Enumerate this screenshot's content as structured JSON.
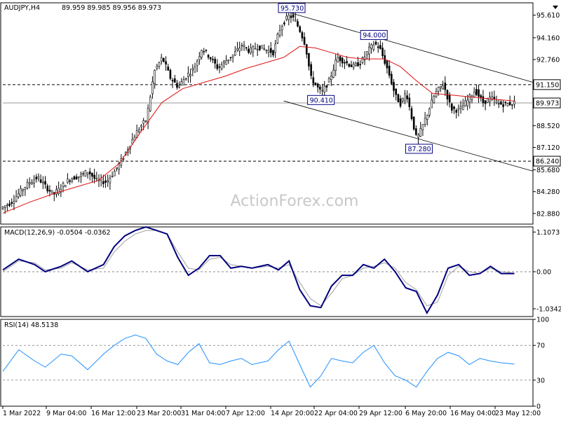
{
  "header": {
    "symbol": "AUDJPY,H4",
    "ohlc": "89.959 89.985 89.956 89.973"
  },
  "watermark": "ActionForex.com",
  "colors": {
    "price": "#000000",
    "ma": "#e01010",
    "channel": "#000000",
    "macd_main": "#00007f",
    "macd_signal": "#a0a0a0",
    "rsi": "#1e90ff",
    "level_line": "#000000",
    "price_tag_bg": "#ffffff",
    "box_border": "#000080"
  },
  "chart_data": [
    {
      "type": "candlestick",
      "panel": "price",
      "ylim": [
        82.2,
        96.4
      ],
      "y_ticks": [
        "95.610",
        "94.160",
        "92.760",
        "91.150",
        "89.973",
        "88.520",
        "87.120",
        "86.240",
        "85.680",
        "84.280",
        "82.880"
      ],
      "y_tick_values": [
        95.61,
        94.16,
        92.76,
        91.15,
        89.973,
        88.52,
        87.12,
        86.24,
        85.68,
        84.28,
        82.88
      ],
      "highlighted_levels": [
        {
          "label": "91.150",
          "value": 91.15,
          "style": "dashed"
        },
        {
          "label": "89.973",
          "value": 89.973,
          "style": "current"
        },
        {
          "label": "86.240",
          "value": 86.24,
          "style": "dashed"
        }
      ],
      "annotations": [
        {
          "label": "95.730",
          "x": 0.545,
          "value": 95.73
        },
        {
          "label": "94.000",
          "x": 0.7,
          "value": 94.0
        },
        {
          "label": "90.410",
          "x": 0.6,
          "value": 90.41
        },
        {
          "label": "87.280",
          "x": 0.785,
          "value": 87.28
        }
      ],
      "channel_upper": [
        [
          0.545,
          95.73
        ],
        [
          1.0,
          91.3
        ]
      ],
      "channel_lower": [
        [
          0.53,
          90.1
        ],
        [
          1.0,
          85.6
        ]
      ],
      "price_series": [
        [
          0.0,
          83.2
        ],
        [
          0.02,
          83.6
        ],
        [
          0.04,
          84.4
        ],
        [
          0.055,
          84.9
        ],
        [
          0.07,
          85.2
        ],
        [
          0.085,
          84.6
        ],
        [
          0.1,
          84.1
        ],
        [
          0.115,
          84.6
        ],
        [
          0.13,
          85.1
        ],
        [
          0.15,
          85.3
        ],
        [
          0.165,
          85.6
        ],
        [
          0.18,
          85.0
        ],
        [
          0.2,
          84.9
        ],
        [
          0.215,
          85.6
        ],
        [
          0.23,
          86.4
        ],
        [
          0.245,
          87.4
        ],
        [
          0.26,
          88.3
        ],
        [
          0.275,
          88.9
        ],
        [
          0.29,
          92.0
        ],
        [
          0.305,
          92.9
        ],
        [
          0.32,
          91.6
        ],
        [
          0.335,
          91.0
        ],
        [
          0.35,
          91.7
        ],
        [
          0.365,
          92.2
        ],
        [
          0.38,
          93.5
        ],
        [
          0.395,
          92.9
        ],
        [
          0.41,
          92.2
        ],
        [
          0.425,
          92.7
        ],
        [
          0.44,
          93.1
        ],
        [
          0.455,
          93.7
        ],
        [
          0.47,
          93.3
        ],
        [
          0.485,
          93.6
        ],
        [
          0.5,
          93.4
        ],
        [
          0.515,
          93.2
        ],
        [
          0.525,
          94.6
        ],
        [
          0.535,
          95.2
        ],
        [
          0.545,
          95.6
        ],
        [
          0.555,
          95.3
        ],
        [
          0.565,
          94.6
        ],
        [
          0.575,
          93.7
        ],
        [
          0.585,
          91.6
        ],
        [
          0.595,
          91.1
        ],
        [
          0.605,
          90.6
        ],
        [
          0.62,
          91.4
        ],
        [
          0.635,
          92.9
        ],
        [
          0.65,
          92.6
        ],
        [
          0.665,
          92.3
        ],
        [
          0.68,
          92.6
        ],
        [
          0.695,
          93.4
        ],
        [
          0.705,
          93.8
        ],
        [
          0.715,
          93.5
        ],
        [
          0.725,
          92.6
        ],
        [
          0.735,
          91.6
        ],
        [
          0.745,
          90.4
        ],
        [
          0.755,
          89.9
        ],
        [
          0.765,
          90.7
        ],
        [
          0.775,
          89.1
        ],
        [
          0.785,
          87.6
        ],
        [
          0.795,
          88.4
        ],
        [
          0.805,
          89.3
        ],
        [
          0.82,
          90.6
        ],
        [
          0.835,
          91.2
        ],
        [
          0.85,
          89.6
        ],
        [
          0.865,
          89.5
        ],
        [
          0.88,
          90.1
        ],
        [
          0.895,
          90.8
        ],
        [
          0.91,
          90.0
        ],
        [
          0.925,
          90.3
        ],
        [
          0.94,
          89.9
        ],
        [
          0.955,
          89.9
        ],
        [
          0.965,
          89.97
        ]
      ],
      "ma_series": [
        [
          0.0,
          82.9
        ],
        [
          0.05,
          83.6
        ],
        [
          0.1,
          84.2
        ],
        [
          0.15,
          84.7
        ],
        [
          0.18,
          85.0
        ],
        [
          0.22,
          86.1
        ],
        [
          0.26,
          88.1
        ],
        [
          0.3,
          90.0
        ],
        [
          0.34,
          90.9
        ],
        [
          0.38,
          91.3
        ],
        [
          0.42,
          91.7
        ],
        [
          0.46,
          92.2
        ],
        [
          0.5,
          92.6
        ],
        [
          0.53,
          92.9
        ],
        [
          0.56,
          93.6
        ],
        [
          0.59,
          93.5
        ],
        [
          0.62,
          93.2
        ],
        [
          0.65,
          92.9
        ],
        [
          0.68,
          92.8
        ],
        [
          0.72,
          92.8
        ],
        [
          0.75,
          92.3
        ],
        [
          0.78,
          91.4
        ],
        [
          0.81,
          90.6
        ],
        [
          0.84,
          90.5
        ],
        [
          0.87,
          90.4
        ],
        [
          0.9,
          90.3
        ],
        [
          0.93,
          90.2
        ],
        [
          0.965,
          90.1
        ]
      ]
    },
    {
      "type": "line",
      "panel": "macd",
      "title": "MACD(12,26,9) -0.0504 -0.0362",
      "ylim": [
        -1.25,
        1.25
      ],
      "y_ticks": [
        "1.1073",
        "0.00",
        "-1.0342"
      ],
      "y_tick_values": [
        1.1073,
        0.0,
        -1.0342
      ],
      "series": [
        {
          "values": [
            [
              0.0,
              0.05
            ],
            [
              0.03,
              0.35
            ],
            [
              0.06,
              0.2
            ],
            [
              0.08,
              0.0
            ],
            [
              0.11,
              0.15
            ],
            [
              0.13,
              0.3
            ],
            [
              0.16,
              0.0
            ],
            [
              0.19,
              0.2
            ],
            [
              0.21,
              0.7
            ],
            [
              0.23,
              1.0
            ],
            [
              0.25,
              1.15
            ],
            [
              0.27,
              1.25
            ],
            [
              0.29,
              1.15
            ],
            [
              0.31,
              1.05
            ],
            [
              0.33,
              0.4
            ],
            [
              0.35,
              -0.1
            ],
            [
              0.37,
              0.1
            ],
            [
              0.39,
              0.45
            ],
            [
              0.41,
              0.45
            ],
            [
              0.43,
              0.1
            ],
            [
              0.45,
              0.15
            ],
            [
              0.47,
              0.1
            ],
            [
              0.5,
              0.2
            ],
            [
              0.52,
              0.05
            ],
            [
              0.54,
              0.3
            ],
            [
              0.56,
              -0.5
            ],
            [
              0.58,
              -0.95
            ],
            [
              0.6,
              -1.0
            ],
            [
              0.62,
              -0.4
            ],
            [
              0.64,
              -0.1
            ],
            [
              0.66,
              -0.1
            ],
            [
              0.68,
              0.2
            ],
            [
              0.7,
              0.1
            ],
            [
              0.72,
              0.35
            ],
            [
              0.74,
              0.0
            ],
            [
              0.76,
              -0.45
            ],
            [
              0.78,
              -0.55
            ],
            [
              0.8,
              -1.15
            ],
            [
              0.82,
              -0.65
            ],
            [
              0.84,
              0.1
            ],
            [
              0.86,
              0.2
            ],
            [
              0.88,
              -0.1
            ],
            [
              0.9,
              -0.05
            ],
            [
              0.92,
              0.15
            ],
            [
              0.94,
              -0.05
            ],
            [
              0.965,
              -0.05
            ]
          ]
        },
        {
          "values": [
            [
              0.0,
              0.0
            ],
            [
              0.03,
              0.3
            ],
            [
              0.06,
              0.25
            ],
            [
              0.08,
              0.05
            ],
            [
              0.11,
              0.1
            ],
            [
              0.13,
              0.25
            ],
            [
              0.16,
              0.05
            ],
            [
              0.19,
              0.1
            ],
            [
              0.21,
              0.55
            ],
            [
              0.23,
              0.85
            ],
            [
              0.25,
              1.05
            ],
            [
              0.27,
              1.15
            ],
            [
              0.29,
              1.15
            ],
            [
              0.31,
              1.05
            ],
            [
              0.33,
              0.55
            ],
            [
              0.35,
              0.1
            ],
            [
              0.37,
              0.05
            ],
            [
              0.39,
              0.35
            ],
            [
              0.41,
              0.4
            ],
            [
              0.43,
              0.2
            ],
            [
              0.45,
              0.15
            ],
            [
              0.47,
              0.1
            ],
            [
              0.5,
              0.15
            ],
            [
              0.52,
              0.1
            ],
            [
              0.54,
              0.2
            ],
            [
              0.56,
              -0.3
            ],
            [
              0.58,
              -0.75
            ],
            [
              0.6,
              -0.95
            ],
            [
              0.62,
              -0.6
            ],
            [
              0.64,
              -0.2
            ],
            [
              0.66,
              -0.1
            ],
            [
              0.68,
              0.1
            ],
            [
              0.7,
              0.15
            ],
            [
              0.72,
              0.25
            ],
            [
              0.74,
              0.1
            ],
            [
              0.76,
              -0.3
            ],
            [
              0.78,
              -0.5
            ],
            [
              0.8,
              -0.95
            ],
            [
              0.82,
              -0.85
            ],
            [
              0.84,
              -0.1
            ],
            [
              0.86,
              0.15
            ],
            [
              0.88,
              0.0
            ],
            [
              0.9,
              -0.05
            ],
            [
              0.92,
              0.1
            ],
            [
              0.94,
              0.0
            ],
            [
              0.965,
              -0.04
            ]
          ]
        }
      ]
    },
    {
      "type": "line",
      "panel": "rsi",
      "title": "RSI(14) 48.5138",
      "ylim": [
        0,
        100
      ],
      "y_ticks": [
        "100",
        "70",
        "30",
        "0"
      ],
      "y_tick_values": [
        100,
        70,
        30,
        0
      ],
      "levels": [
        70,
        30
      ],
      "values": [
        [
          0.0,
          40
        ],
        [
          0.03,
          65
        ],
        [
          0.06,
          52
        ],
        [
          0.08,
          45
        ],
        [
          0.11,
          60
        ],
        [
          0.13,
          58
        ],
        [
          0.16,
          42
        ],
        [
          0.19,
          60
        ],
        [
          0.21,
          70
        ],
        [
          0.23,
          78
        ],
        [
          0.25,
          82
        ],
        [
          0.27,
          78
        ],
        [
          0.29,
          60
        ],
        [
          0.31,
          52
        ],
        [
          0.33,
          48
        ],
        [
          0.35,
          62
        ],
        [
          0.37,
          72
        ],
        [
          0.39,
          50
        ],
        [
          0.41,
          48
        ],
        [
          0.43,
          52
        ],
        [
          0.45,
          55
        ],
        [
          0.47,
          48
        ],
        [
          0.5,
          52
        ],
        [
          0.52,
          65
        ],
        [
          0.54,
          75
        ],
        [
          0.56,
          48
        ],
        [
          0.58,
          22
        ],
        [
          0.6,
          35
        ],
        [
          0.62,
          55
        ],
        [
          0.64,
          52
        ],
        [
          0.66,
          50
        ],
        [
          0.68,
          62
        ],
        [
          0.7,
          70
        ],
        [
          0.72,
          50
        ],
        [
          0.74,
          35
        ],
        [
          0.76,
          30
        ],
        [
          0.78,
          22
        ],
        [
          0.8,
          40
        ],
        [
          0.82,
          55
        ],
        [
          0.84,
          62
        ],
        [
          0.86,
          58
        ],
        [
          0.88,
          48
        ],
        [
          0.9,
          55
        ],
        [
          0.92,
          52
        ],
        [
          0.94,
          50
        ],
        [
          0.965,
          48.5
        ]
      ]
    }
  ],
  "x_axis": {
    "labels": [
      "1 Mar 2022",
      "9 Mar 04:00",
      "16 Mar 12:00",
      "23 Mar 20:00",
      "31 Mar 04:00",
      "7 Apr 12:00",
      "14 Apr 20:00",
      "22 Apr 04:00",
      "29 Apr 12:00",
      "6 May 20:00",
      "16 May 04:00",
      "23 May 12:00"
    ]
  }
}
